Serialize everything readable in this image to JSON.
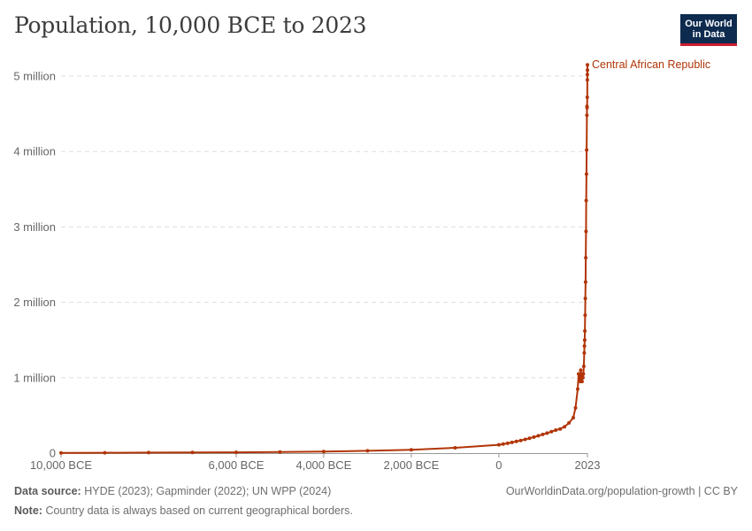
{
  "title": "Population, 10,000 BCE to 2023",
  "logo": {
    "line1": "Our World",
    "line2": "in Data"
  },
  "footer": {
    "source_label": "Data source:",
    "source_text": "HYDE (2023); Gapminder (2022); UN WPP (2024)",
    "note_label": "Note:",
    "note_text": "Country data is always based on current geographical borders.",
    "credit": "OurWorldinData.org/population-growth | CC BY"
  },
  "colors": {
    "series": "#b13507",
    "grid": "#dddddd",
    "axis": "#666666"
  },
  "chart_data": {
    "type": "line",
    "title": "Population, 10,000 BCE to 2023",
    "xlabel": "",
    "ylabel": "",
    "xlim": [
      -10000,
      2023
    ],
    "ylim": [
      0,
      5000000
    ],
    "x_ticks": [
      {
        "value": -10000,
        "label": "10,000 BCE"
      },
      {
        "value": -6000,
        "label": "6,000 BCE"
      },
      {
        "value": -4000,
        "label": "4,000 BCE"
      },
      {
        "value": -2000,
        "label": "2,000 BCE"
      },
      {
        "value": 0,
        "label": "0"
      },
      {
        "value": 2023,
        "label": "2023"
      }
    ],
    "y_ticks": [
      {
        "value": 0,
        "label": "0"
      },
      {
        "value": 1000000,
        "label": "1 million"
      },
      {
        "value": 2000000,
        "label": "2 million"
      },
      {
        "value": 3000000,
        "label": "3 million"
      },
      {
        "value": 4000000,
        "label": "4 million"
      },
      {
        "value": 5000000,
        "label": "5 million"
      }
    ],
    "grid": true,
    "series": [
      {
        "name": "Central African Republic",
        "x": [
          -10000,
          -9000,
          -8000,
          -7000,
          -6000,
          -5000,
          -4000,
          -3000,
          -2000,
          -1000,
          0,
          100,
          200,
          300,
          400,
          500,
          600,
          700,
          800,
          900,
          1000,
          1100,
          1200,
          1300,
          1400,
          1500,
          1600,
          1700,
          1750,
          1800,
          1820,
          1840,
          1860,
          1870,
          1880,
          1890,
          1900,
          1910,
          1920,
          1930,
          1940,
          1950,
          1955,
          1960,
          1965,
          1970,
          1975,
          1980,
          1985,
          1990,
          1995,
          2000,
          2005,
          2010,
          2013,
          2015,
          2018,
          2020,
          2021,
          2022,
          2023
        ],
        "y": [
          3800,
          5000,
          6500,
          8500,
          11000,
          14000,
          20000,
          30000,
          45000,
          70000,
          110000,
          120000,
          130000,
          142000,
          155000,
          168000,
          182000,
          197000,
          213000,
          230000,
          248000,
          265000,
          285000,
          305000,
          320000,
          350000,
          400000,
          470000,
          600000,
          850000,
          1050000,
          1000000,
          950000,
          1100000,
          1050000,
          1000000,
          950000,
          1000000,
          1000000,
          1050000,
          1150000,
          1330000,
          1420000,
          1500000,
          1620000,
          1830000,
          2050000,
          2270000,
          2590000,
          2940000,
          3350000,
          3700000,
          4020000,
          4480000,
          4600000,
          4580000,
          4720000,
          4950000,
          5020000,
          5080000,
          5150000
        ]
      }
    ]
  }
}
